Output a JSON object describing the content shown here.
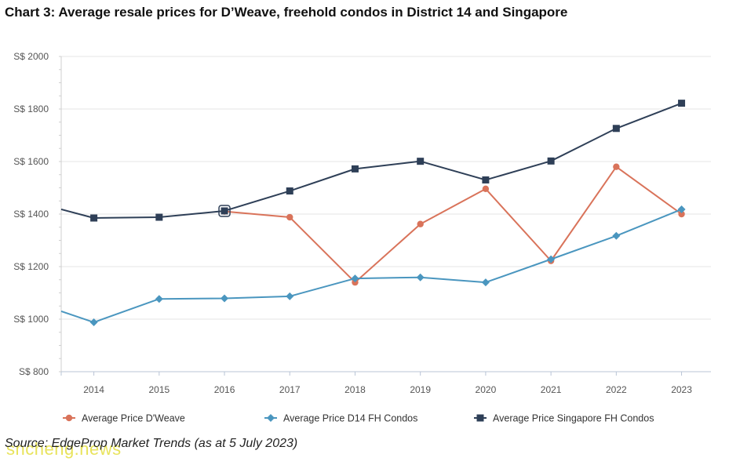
{
  "title": "Chart 3: Average resale prices for D’Weave, freehold condos in District 14 and Singapore",
  "source": "Source: EdgeProp Market Trends (as at 5 July 2023)",
  "watermark": "sncheng.news",
  "chart_data": {
    "type": "line",
    "title": "Chart 3: Average resale prices for D’Weave, freehold condos in District 14 and Singapore",
    "x": [
      2014,
      2015,
      2016,
      2017,
      2018,
      2019,
      2020,
      2021,
      2022,
      2023
    ],
    "xlim": [
      2013.5,
      2023.45
    ],
    "ylim": [
      800,
      2000
    ],
    "yticks": [
      800,
      1000,
      1200,
      1400,
      1600,
      1800,
      2000
    ],
    "ytick_labels": [
      "S$ 800",
      "S$ 1000",
      "S$ 1200",
      "S$ 1400",
      "S$ 1600",
      "S$ 1800",
      "S$ 2000"
    ],
    "grid": true,
    "legend": "bottom",
    "series": [
      {
        "name": "Average Price D'Weave",
        "color": "#d9735a",
        "marker": "circle",
        "points": [
          {
            "x": 2016,
            "y": 1410
          },
          {
            "x": 2017,
            "y": 1388
          },
          {
            "x": 2018,
            "y": 1140
          },
          {
            "x": 2019,
            "y": 1362
          },
          {
            "x": 2020,
            "y": 1496
          },
          {
            "x": 2021,
            "y": 1222
          },
          {
            "x": 2022,
            "y": 1580
          },
          {
            "x": 2023,
            "y": 1400
          }
        ]
      },
      {
        "name": "Average Price D14 FH Condos",
        "color": "#4a96bf",
        "marker": "diamond",
        "points": [
          {
            "x": 2013.5,
            "y": 1030
          },
          {
            "x": 2014,
            "y": 988
          },
          {
            "x": 2015,
            "y": 1077
          },
          {
            "x": 2016,
            "y": 1079
          },
          {
            "x": 2017,
            "y": 1087
          },
          {
            "x": 2018,
            "y": 1155
          },
          {
            "x": 2019,
            "y": 1159
          },
          {
            "x": 2020,
            "y": 1140
          },
          {
            "x": 2021,
            "y": 1228
          },
          {
            "x": 2022,
            "y": 1317
          },
          {
            "x": 2023,
            "y": 1418
          }
        ]
      },
      {
        "name": "Average Price Singapore FH Condos",
        "color": "#2e3f57",
        "marker": "square",
        "points": [
          {
            "x": 2013.5,
            "y": 1418
          },
          {
            "x": 2014,
            "y": 1385
          },
          {
            "x": 2015,
            "y": 1388
          },
          {
            "x": 2016,
            "y": 1412
          },
          {
            "x": 2017,
            "y": 1488
          },
          {
            "x": 2018,
            "y": 1572
          },
          {
            "x": 2019,
            "y": 1601
          },
          {
            "x": 2020,
            "y": 1530
          },
          {
            "x": 2021,
            "y": 1602
          },
          {
            "x": 2022,
            "y": 1726
          },
          {
            "x": 2023,
            "y": 1822
          }
        ]
      }
    ]
  }
}
